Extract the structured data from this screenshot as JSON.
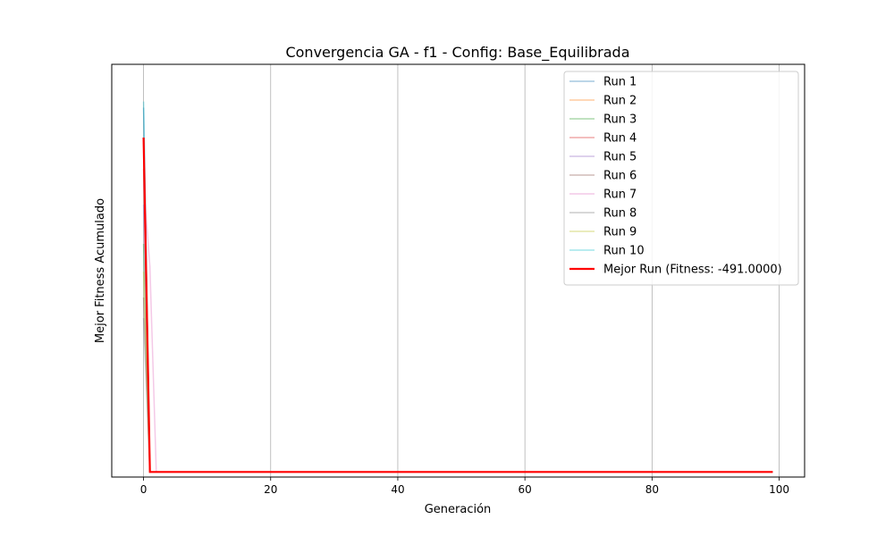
{
  "chart_data": {
    "type": "line",
    "title": "Convergencia GA - f1 - Config: Base_Equilibrada",
    "xlabel": "Generación",
    "ylabel": "Mejor Fitness Acumulado",
    "xlim": [
      -5,
      104
    ],
    "xticks": [
      0,
      20,
      40,
      60,
      80,
      100
    ],
    "ylim": [
      -540,
      3460
    ],
    "yticks_visible": false,
    "grid": "x-only",
    "legend_position": "top-right",
    "best_run_label": "Mejor Run (Fitness: -491.0000)",
    "best_run_color": "#ff0000",
    "series": [
      {
        "name": "Run 1",
        "color": "#1f77b4",
        "x": [
          0,
          1,
          99
        ],
        "y": [
          3040,
          -491,
          -491
        ]
      },
      {
        "name": "Run 2",
        "color": "#ff7f0e",
        "x": [
          0,
          1,
          99
        ],
        "y": [
          2700,
          -491,
          -491
        ]
      },
      {
        "name": "Run 3",
        "color": "#2ca02c",
        "x": [
          0,
          1,
          99
        ],
        "y": [
          1720,
          -491,
          -491
        ]
      },
      {
        "name": "Run 4",
        "color": "#d62728",
        "x": [
          0,
          1,
          99
        ],
        "y": [
          2450,
          -491,
          -491
        ]
      },
      {
        "name": "Run 5",
        "color": "#9467bd",
        "x": [
          0,
          1,
          99
        ],
        "y": [
          2100,
          -491,
          -491
        ]
      },
      {
        "name": "Run 6",
        "color": "#8c564b",
        "x": [
          0,
          1,
          99
        ],
        "y": [
          1200,
          -491,
          -491
        ]
      },
      {
        "name": "Run 7",
        "color": "#e377c2",
        "x": [
          0,
          1,
          2,
          99
        ],
        "y": [
          2300,
          1500,
          -491,
          -491
        ]
      },
      {
        "name": "Run 8",
        "color": "#7f7f7f",
        "x": [
          0,
          1,
          99
        ],
        "y": [
          1000,
          -491,
          -491
        ]
      },
      {
        "name": "Run 9",
        "color": "#bcbd22",
        "x": [
          0,
          1,
          99
        ],
        "y": [
          1450,
          -491,
          -491
        ]
      },
      {
        "name": "Run 10",
        "color": "#17becf",
        "x": [
          0,
          1,
          99
        ],
        "y": [
          3100,
          -491,
          -491
        ]
      },
      {
        "name": "Mejor Run (Fitness: -491.0000)",
        "color": "#ff0000",
        "x": [
          0,
          1,
          99
        ],
        "y": [
          2750,
          -491,
          -491
        ]
      }
    ]
  }
}
